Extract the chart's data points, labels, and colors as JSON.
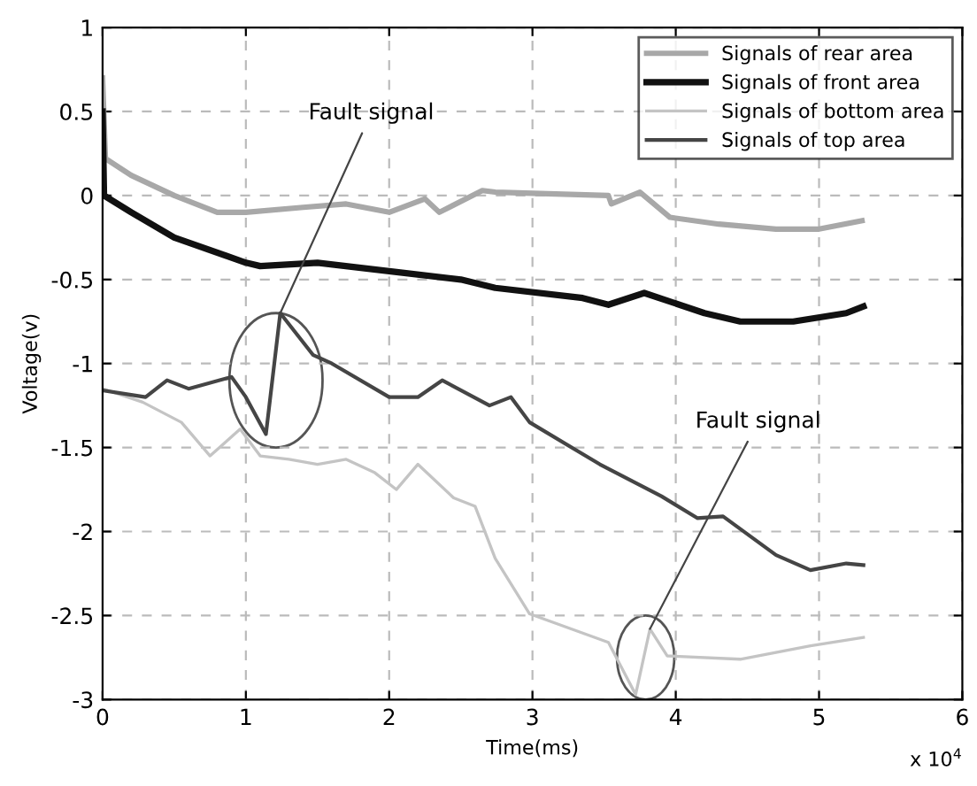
{
  "chart_data": {
    "type": "line",
    "xlabel": "Time(ms)",
    "ylabel": "Voltage(v)",
    "xlim": [
      0,
      6
    ],
    "xticks": [
      0,
      1,
      2,
      3,
      4,
      5,
      6
    ],
    "ylim": [
      -3,
      1
    ],
    "yticks": [
      -3,
      -2.5,
      -2,
      -1.5,
      -1,
      -0.5,
      0,
      0.5,
      1
    ],
    "grid": true,
    "legend": "top right",
    "line_style": "solid",
    "marker": "none",
    "annotations": [
      {
        "text": "Fault signal",
        "x": 1.24,
        "y": -0.7
      },
      {
        "text": "Fault signal",
        "x": 3.82,
        "y": -2.58
      },
      "x 10$^{4}$"
    ],
    "series": [
      {
        "name": "Signals of rear area",
        "color": "#a8a8a8",
        "x": [
          0,
          0.02,
          0.2,
          0.5,
          0.8,
          1.0,
          1.4,
          1.7,
          2.0,
          2.25,
          2.35,
          2.65,
          2.74,
          3.53,
          3.55,
          3.75,
          3.96,
          4.3,
          4.7,
          5.0,
          5.3
        ],
        "values": [
          0.7,
          0.22,
          0.12,
          0.0,
          -0.1,
          -0.1,
          -0.07,
          -0.05,
          -0.1,
          -0.02,
          -0.1,
          0.03,
          0.02,
          0.0,
          -0.05,
          0.02,
          -0.13,
          -0.17,
          -0.2,
          -0.2,
          -0.15
        ]
      },
      {
        "name": "Signals of front area",
        "color": "#111111",
        "x": [
          0,
          0.01,
          0.2,
          0.5,
          1.0,
          1.1,
          1.5,
          2.0,
          2.5,
          2.74,
          3.35,
          3.53,
          3.78,
          4.2,
          4.45,
          4.82,
          5.19,
          5.31
        ],
        "values": [
          0.5,
          0.0,
          -0.1,
          -0.25,
          -0.4,
          -0.42,
          -0.4,
          -0.45,
          -0.5,
          -0.55,
          -0.61,
          -0.65,
          -0.58,
          -0.7,
          -0.75,
          -0.75,
          -0.7,
          -0.66
        ]
      },
      {
        "name": "Signals of bottom area",
        "color": "#c4c4c4",
        "x": [
          0,
          0.28,
          0.55,
          0.75,
          0.96,
          1.1,
          1.3,
          1.5,
          1.7,
          1.9,
          2.05,
          2.2,
          2.45,
          2.6,
          2.74,
          2.98,
          3.53,
          3.72,
          3.82,
          3.94,
          4.45,
          4.94,
          5.31
        ],
        "values": [
          -1.15,
          -1.23,
          -1.35,
          -1.55,
          -1.39,
          -1.55,
          -1.57,
          -1.6,
          -1.57,
          -1.65,
          -1.75,
          -1.6,
          -1.8,
          -1.85,
          -2.16,
          -2.49,
          -2.66,
          -2.97,
          -2.58,
          -2.74,
          -2.76,
          -2.68,
          -2.63
        ]
      },
      {
        "name": "Signals of top area",
        "color": "#454545",
        "x": [
          0,
          0.3,
          0.45,
          0.6,
          0.9,
          1.0,
          1.14,
          1.24,
          1.47,
          1.6,
          2.0,
          2.2,
          2.37,
          2.7,
          2.85,
          2.98,
          3.47,
          3.9,
          4.15,
          4.33,
          4.7,
          4.94,
          5.19,
          5.31
        ],
        "values": [
          -1.16,
          -1.2,
          -1.1,
          -1.15,
          -1.08,
          -1.2,
          -1.42,
          -0.7,
          -0.95,
          -1.0,
          -1.2,
          -1.2,
          -1.1,
          -1.25,
          -1.2,
          -1.35,
          -1.6,
          -1.79,
          -1.92,
          -1.91,
          -2.14,
          -2.23,
          -2.19,
          -2.2
        ]
      }
    ]
  }
}
